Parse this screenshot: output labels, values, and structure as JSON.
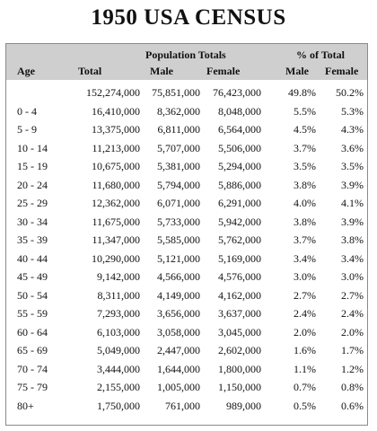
{
  "title": "1950 USA CENSUS",
  "table": {
    "group_headers": {
      "population_totals": "Population Totals",
      "percent_of_total": "% of Total"
    },
    "columns": {
      "age": "Age",
      "total": "Total",
      "male": "Male",
      "female": "Female",
      "pct_male": "Male",
      "pct_female": "Female"
    },
    "rows": [
      {
        "age": "",
        "total": "152,274,000",
        "male": "75,851,000",
        "female": "76,423,000",
        "pct_male": "49.8%",
        "pct_female": "50.2%"
      },
      {
        "age": "0 - 4",
        "total": "16,410,000",
        "male": "8,362,000",
        "female": "8,048,000",
        "pct_male": "5.5%",
        "pct_female": "5.3%"
      },
      {
        "age": "5 - 9",
        "total": "13,375,000",
        "male": "6,811,000",
        "female": "6,564,000",
        "pct_male": "4.5%",
        "pct_female": "4.3%"
      },
      {
        "age": "10 - 14",
        "total": "11,213,000",
        "male": "5,707,000",
        "female": "5,506,000",
        "pct_male": "3.7%",
        "pct_female": "3.6%"
      },
      {
        "age": "15 - 19",
        "total": "10,675,000",
        "male": "5,381,000",
        "female": "5,294,000",
        "pct_male": "3.5%",
        "pct_female": "3.5%"
      },
      {
        "age": "20 - 24",
        "total": "11,680,000",
        "male": "5,794,000",
        "female": "5,886,000",
        "pct_male": "3.8%",
        "pct_female": "3.9%"
      },
      {
        "age": "25 - 29",
        "total": "12,362,000",
        "male": "6,071,000",
        "female": "6,291,000",
        "pct_male": "4.0%",
        "pct_female": "4.1%"
      },
      {
        "age": "30 - 34",
        "total": "11,675,000",
        "male": "5,733,000",
        "female": "5,942,000",
        "pct_male": "3.8%",
        "pct_female": "3.9%"
      },
      {
        "age": "35 - 39",
        "total": "11,347,000",
        "male": "5,585,000",
        "female": "5,762,000",
        "pct_male": "3.7%",
        "pct_female": "3.8%"
      },
      {
        "age": "40 - 44",
        "total": "10,290,000",
        "male": "5,121,000",
        "female": "5,169,000",
        "pct_male": "3.4%",
        "pct_female": "3.4%"
      },
      {
        "age": "45 - 49",
        "total": "9,142,000",
        "male": "4,566,000",
        "female": "4,576,000",
        "pct_male": "3.0%",
        "pct_female": "3.0%"
      },
      {
        "age": "50 - 54",
        "total": "8,311,000",
        "male": "4,149,000",
        "female": "4,162,000",
        "pct_male": "2.7%",
        "pct_female": "2.7%"
      },
      {
        "age": "55 - 59",
        "total": "7,293,000",
        "male": "3,656,000",
        "female": "3,637,000",
        "pct_male": "2.4%",
        "pct_female": "2.4%"
      },
      {
        "age": "60 - 64",
        "total": "6,103,000",
        "male": "3,058,000",
        "female": "3,045,000",
        "pct_male": "2.0%",
        "pct_female": "2.0%"
      },
      {
        "age": "65 - 69",
        "total": "5,049,000",
        "male": "2,447,000",
        "female": "2,602,000",
        "pct_male": "1.6%",
        "pct_female": "1.7%"
      },
      {
        "age": "70 - 74",
        "total": "3,444,000",
        "male": "1,644,000",
        "female": "1,800,000",
        "pct_male": "1.1%",
        "pct_female": "1.2%"
      },
      {
        "age": "75 - 79",
        "total": "2,155,000",
        "male": "1,005,000",
        "female": "1,150,000",
        "pct_male": "0.7%",
        "pct_female": "0.8%"
      },
      {
        "age": "80+",
        "total": "1,750,000",
        "male": "761,000",
        "female": "989,000",
        "pct_male": "0.5%",
        "pct_female": "0.6%"
      }
    ]
  }
}
